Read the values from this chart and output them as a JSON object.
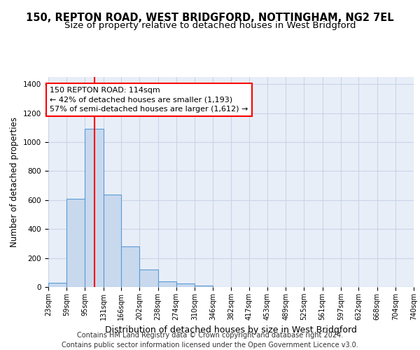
{
  "title_line1": "150, REPTON ROAD, WEST BRIDGFORD, NOTTINGHAM, NG2 7EL",
  "title_line2": "Size of property relative to detached houses in West Bridgford",
  "xlabel": "Distribution of detached houses by size in West Bridgford",
  "ylabel": "Number of detached properties",
  "bin_edges": [
    23,
    59,
    95,
    131,
    166,
    202,
    238,
    274,
    310,
    346,
    382,
    417,
    453,
    489,
    525,
    561,
    597,
    632,
    668,
    704,
    740
  ],
  "bar_heights": [
    30,
    610,
    1090,
    640,
    280,
    120,
    40,
    22,
    12,
    0,
    0,
    0,
    0,
    0,
    0,
    0,
    0,
    0,
    0,
    0
  ],
  "bar_color": "#c8d9ee",
  "bar_edge_color": "#5b9bd5",
  "bar_edge_width": 0.8,
  "grid_color": "#c8d4e8",
  "background_color": "#e8eef8",
  "red_line_x": 114,
  "annotation_line1": "150 REPTON ROAD: 114sqm",
  "annotation_line2": "← 42% of detached houses are smaller (1,193)",
  "annotation_line3": "57% of semi-detached houses are larger (1,612) →",
  "ylim": [
    0,
    1450
  ],
  "yticks": [
    0,
    200,
    400,
    600,
    800,
    1000,
    1200,
    1400
  ],
  "tick_labels": [
    "23sqm",
    "59sqm",
    "95sqm",
    "131sqm",
    "166sqm",
    "202sqm",
    "238sqm",
    "274sqm",
    "310sqm",
    "346sqm",
    "382sqm",
    "417sqm",
    "453sqm",
    "489sqm",
    "525sqm",
    "561sqm",
    "597sqm",
    "632sqm",
    "668sqm",
    "704sqm",
    "740sqm"
  ],
  "footer_line1": "Contains HM Land Registry data © Crown copyright and database right 2024.",
  "footer_line2": "Contains public sector information licensed under the Open Government Licence v3.0.",
  "title_fontsize": 10.5,
  "subtitle_fontsize": 9.5,
  "ylabel_fontsize": 8.5,
  "xlabel_fontsize": 9,
  "tick_fontsize": 7,
  "footer_fontsize": 7,
  "ann_fontsize": 8
}
